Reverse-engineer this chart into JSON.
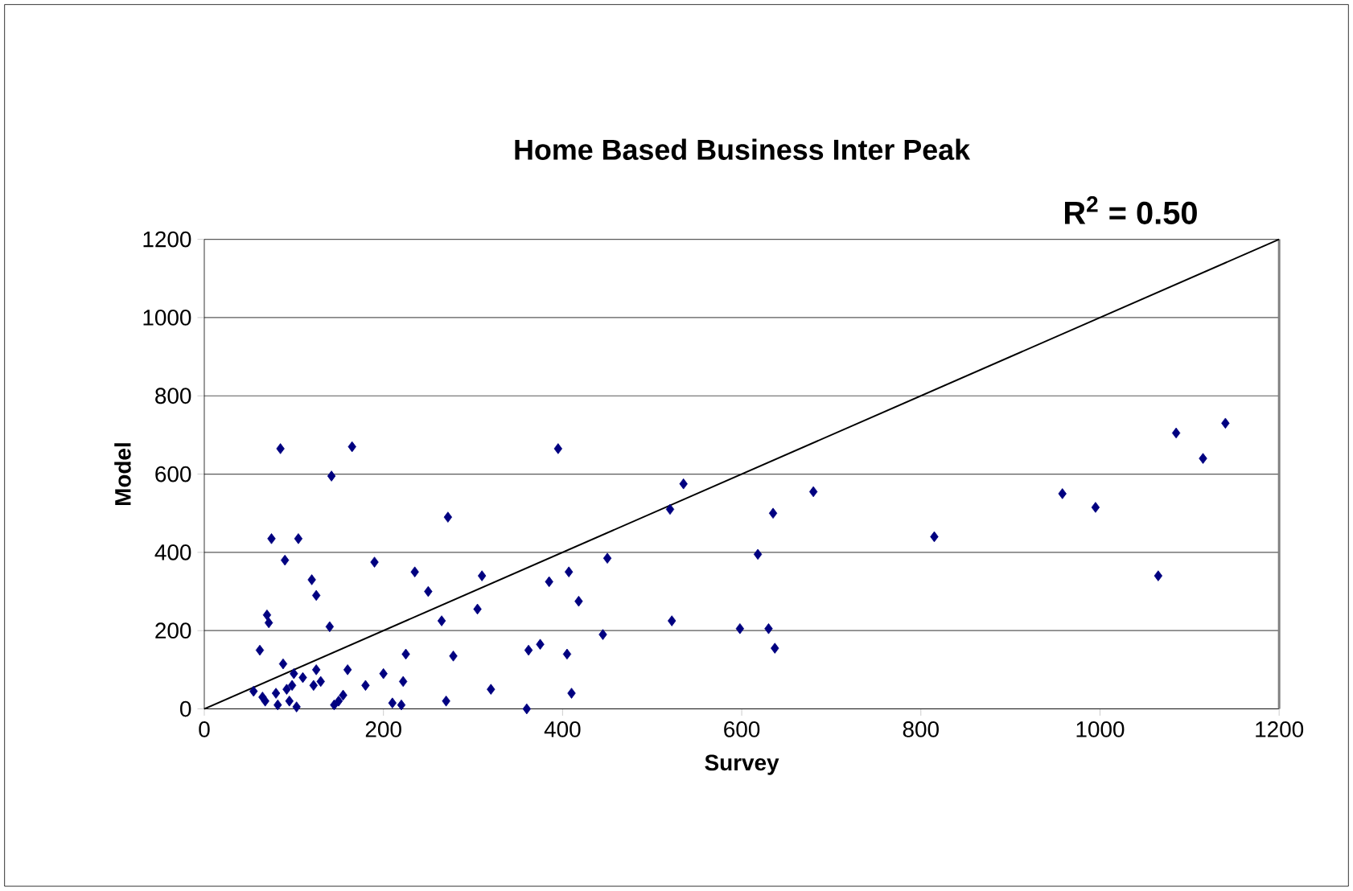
{
  "chart_data": {
    "type": "scatter",
    "title": "Home Based Business Inter Peak",
    "xlabel": "Survey",
    "ylabel": "Model",
    "xlim": [
      0,
      1200
    ],
    "ylim": [
      0,
      1200
    ],
    "xticks": [
      0,
      200,
      400,
      600,
      800,
      1000,
      1200
    ],
    "yticks": [
      0,
      200,
      400,
      600,
      800,
      1000,
      1200
    ],
    "grid": "y",
    "annotations": [
      "R$^{2}$ = 0.50"
    ],
    "series": [
      {
        "marker": "diamond",
        "color": "#000080",
        "x": [
          55,
          62,
          65,
          68,
          70,
          72,
          75,
          80,
          82,
          85,
          88,
          90,
          92,
          95,
          98,
          100,
          103,
          105,
          110,
          120,
          122,
          125,
          125,
          130,
          140,
          142,
          145,
          150,
          155,
          160,
          165,
          180,
          190,
          200,
          210,
          220,
          222,
          225,
          235,
          250,
          265,
          270,
          272,
          278,
          305,
          310,
          320,
          360,
          362,
          375,
          385,
          395,
          405,
          407,
          410,
          418,
          445,
          450,
          520,
          522,
          535,
          598,
          618,
          630,
          635,
          637,
          680,
          815,
          958,
          995,
          1065,
          1085,
          1115,
          1140
        ],
        "values": [
          45,
          150,
          30,
          20,
          240,
          220,
          435,
          40,
          10,
          665,
          115,
          380,
          50,
          20,
          60,
          90,
          5,
          435,
          80,
          330,
          60,
          100,
          290,
          70,
          210,
          595,
          10,
          20,
          35,
          100,
          670,
          60,
          375,
          90,
          15,
          10,
          70,
          140,
          350,
          300,
          225,
          20,
          490,
          135,
          255,
          340,
          50,
          0,
          150,
          165,
          325,
          665,
          140,
          350,
          40,
          275,
          190,
          385,
          510,
          225,
          575,
          205,
          395,
          205,
          500,
          155,
          555,
          440,
          550,
          515,
          340,
          705,
          640,
          730
        ]
      },
      {
        "type": "line",
        "marker": "none",
        "color": "#000000",
        "x": [
          0,
          1200
        ],
        "values": [
          0,
          1200
        ]
      }
    ]
  }
}
